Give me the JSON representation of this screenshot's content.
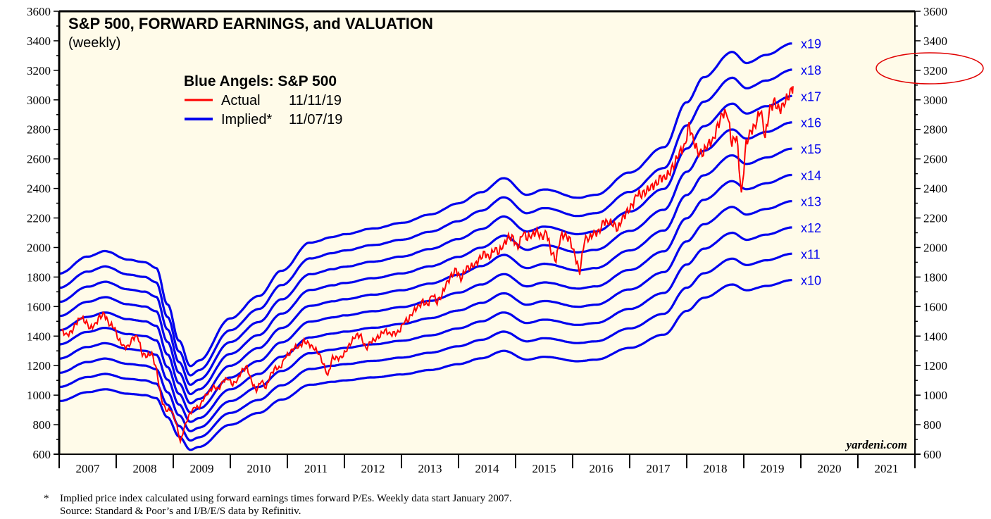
{
  "chart_data": {
    "type": "line",
    "title": "S&P 500, FORWARD EARNINGS, and VALUATION",
    "subtitle": "(weekly)",
    "legend": {
      "title": "Blue Angels: S&P 500",
      "placement": "top-left",
      "entries": [
        {
          "name": "Actual",
          "date": "11/11/19",
          "color": "#ff0000"
        },
        {
          "name": "Implied*",
          "date": "11/07/19",
          "color": "#0000ee"
        }
      ]
    },
    "ylim": [
      600,
      3600
    ],
    "yticks": [
      "600",
      "800",
      "1000",
      "1200",
      "1400",
      "1600",
      "1800",
      "2000",
      "2200",
      "2400",
      "2600",
      "2800",
      "3000",
      "3200",
      "3400",
      "3600"
    ],
    "xlim": [
      2007,
      2022
    ],
    "xticks": [
      "2007",
      "2008",
      "2009",
      "2010",
      "2011",
      "2012",
      "2013",
      "2014",
      "2015",
      "2016",
      "2017",
      "2018",
      "2019",
      "2020",
      "2021"
    ],
    "grid": false,
    "multiples": [
      10,
      11,
      12,
      13,
      14,
      15,
      16,
      17,
      18,
      19
    ],
    "multiple_labels": [
      "x10",
      "x11",
      "x12",
      "x13",
      "x14",
      "x15",
      "x16",
      "x17",
      "x18",
      "x19"
    ],
    "forward_earnings_implied_base": [
      [
        2007.0,
        96
      ],
      [
        2007.5,
        102
      ],
      [
        2007.8,
        104
      ],
      [
        2008.2,
        101
      ],
      [
        2008.5,
        100
      ],
      [
        2008.7,
        98
      ],
      [
        2008.9,
        85
      ],
      [
        2009.1,
        72
      ],
      [
        2009.3,
        63
      ],
      [
        2009.45,
        65
      ],
      [
        2010.0,
        80
      ],
      [
        2010.5,
        88
      ],
      [
        2010.9,
        97
      ],
      [
        2011.4,
        107
      ],
      [
        2011.8,
        109
      ],
      [
        2012.0,
        110
      ],
      [
        2012.5,
        112
      ],
      [
        2013.0,
        114
      ],
      [
        2013.5,
        117
      ],
      [
        2014.0,
        121
      ],
      [
        2014.4,
        125
      ],
      [
        2014.8,
        130
      ],
      [
        2015.2,
        124
      ],
      [
        2015.5,
        126
      ],
      [
        2016.1,
        123
      ],
      [
        2016.4,
        124
      ],
      [
        2017.0,
        132
      ],
      [
        2017.6,
        141
      ],
      [
        2018.0,
        157
      ],
      [
        2018.3,
        166
      ],
      [
        2018.8,
        175
      ],
      [
        2019.05,
        171
      ],
      [
        2019.4,
        174
      ],
      [
        2019.85,
        178
      ]
    ],
    "actual_series": {
      "name": "Actual",
      "start": "2007-01",
      "monthly": [
        1438,
        1406,
        1421,
        1482,
        1530,
        1503,
        1455,
        1474,
        1527,
        1549,
        1481,
        1468,
        1378,
        1331,
        1323,
        1386,
        1400,
        1280,
        1267,
        1283,
        1165,
        969,
        896,
        903,
        826,
        683,
        798,
        873,
        919,
        919,
        987,
        1021,
        1057,
        1036,
        1096,
        1115,
        1074,
        1104,
        1169,
        1187,
        1089,
        1031,
        1102,
        1049,
        1141,
        1183,
        1181,
        1258,
        1286,
        1327,
        1326,
        1364,
        1345,
        1321,
        1292,
        1219,
        1131,
        1253,
        1247,
        1258,
        1312,
        1366,
        1408,
        1398,
        1310,
        1362,
        1379,
        1407,
        1441,
        1412,
        1416,
        1426,
        1498,
        1515,
        1569,
        1598,
        1631,
        1606,
        1686,
        1633,
        1682,
        1757,
        1806,
        1848,
        1783,
        1859,
        1872,
        1884,
        1924,
        1960,
        1931,
        1995,
        1972,
        2018,
        2068,
        2059,
        1995,
        2105,
        2068,
        2086,
        2107,
        2063,
        2104,
        1972,
        1920,
        2079,
        2080,
        2044,
        1940,
        1832,
        2060,
        2065,
        2097,
        2099,
        2174,
        2171,
        2168,
        2126,
        2199,
        2239,
        2279,
        2364,
        2363,
        2384,
        2412,
        2423,
        2470,
        2472,
        2519,
        2575,
        2648,
        2674,
        2824,
        2714,
        2641,
        2648,
        2705,
        2718,
        2816,
        2902,
        2914,
        2712,
        2760,
        2351,
        2704,
        2784,
        2834,
        2946,
        2752,
        2942,
        2980,
        2926,
        2977,
        3038,
        3093
      ]
    },
    "highlight": {
      "shape": "ellipse",
      "around_tick": "3200",
      "color": "#e00000"
    }
  },
  "watermark": "yardeni.com",
  "footnote": {
    "marker": "*",
    "line1": "Implied price index calculated using forward earnings times forward P/Es. Weekly data start January 2007.",
    "line2": "Source: Standard & Poor’s and I/B/E/S data by Refinitiv."
  },
  "colors": {
    "plot_background": "#fffbe9",
    "implied": "#0000ee",
    "actual": "#ff0000"
  }
}
